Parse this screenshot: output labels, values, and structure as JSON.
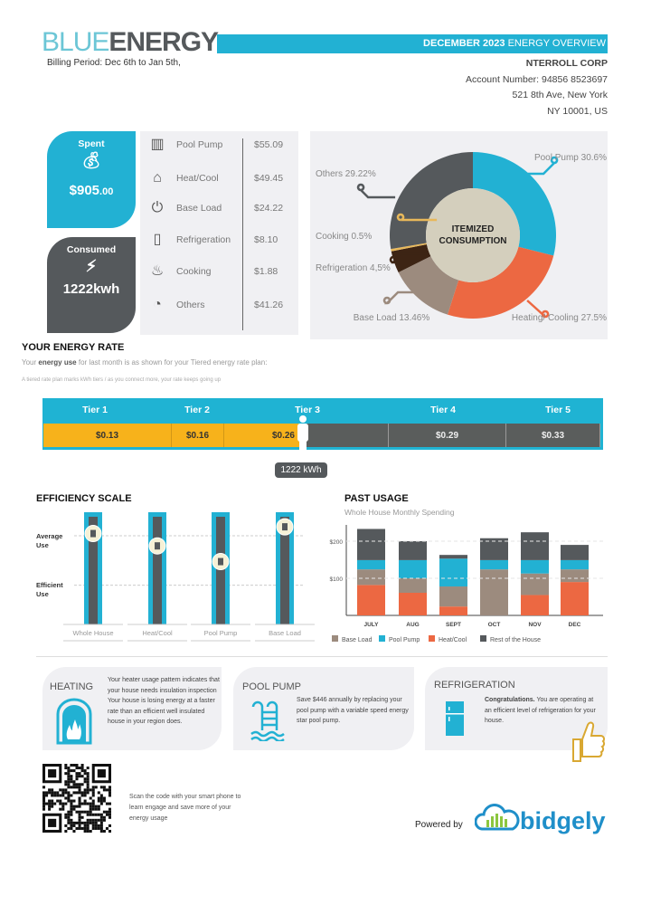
{
  "header": {
    "logo_blue": "BLUE",
    "logo_energy": "ENERGY",
    "banner_bold": "DECEMBER 2023",
    "banner_rest": " ENERGY OVERVIEW",
    "billing_period": "Billing  Period:  Dec 6th to Jan 5th,"
  },
  "account": {
    "company": "NTERROLL  CORP",
    "number": "Account  Number:  94856 8523697",
    "address1": "521  8th Ave, New York",
    "address2": "NY 10001,  US"
  },
  "summary": {
    "spent_label": "Spent",
    "spent_value": "$905",
    "spent_cents": ".00",
    "consumed_label": "Consumed",
    "consumed_value": "1222kwh"
  },
  "breakdown": [
    {
      "icon": "pool-ladder-icon",
      "glyph": "▥",
      "name": "Pool  Pump",
      "amount": "$55.09"
    },
    {
      "icon": "heat-cool-icon",
      "glyph": "⌂",
      "name": "Heat/Cool",
      "amount": "$49.45"
    },
    {
      "icon": "power-icon",
      "glyph": "⏻",
      "name": "Base  Load",
      "amount": "$24.22"
    },
    {
      "icon": "refrigerator-icon",
      "glyph": "▯",
      "name": "Refrigeration",
      "amount": "$8.10"
    },
    {
      "icon": "cooking-pot-icon",
      "glyph": "♨",
      "name": "Cooking",
      "amount": "$1.88"
    },
    {
      "icon": "plug-icon",
      "glyph": "◔",
      "name": "Others",
      "amount": "$41.26"
    }
  ],
  "rate": {
    "title": "YOUR  ENERGY  RATE",
    "desc_pre": "Your ",
    "desc_bold": "energy use",
    "desc_post": " for last month is as shown for your Tiered energy rate plan:",
    "small": "A tiered  rate plan marks kWh  tiers / as you connect  more, your rate  keeps going  up",
    "tiers": [
      {
        "label": "Tier 1",
        "price": "$0.13"
      },
      {
        "label": "Tier 2",
        "price": "$0.16"
      },
      {
        "label": "Tier 3",
        "price": "$0.26"
      },
      {
        "label": "Tier 4",
        "price": "$0.29"
      },
      {
        "label": "Tier 5",
        "price": "$0.33"
      }
    ],
    "usage_badge": "1222 kWh",
    "current_tier": 3
  },
  "efficiency": {
    "title": "EFFICIENCY  SCALE",
    "average_label": "Average Use",
    "efficient_label": "Efficient Use",
    "average_level_pct": 79,
    "efficient_level_pct": 35,
    "items": [
      {
        "label": "Whole  House",
        "icon": "house-icon",
        "level_pct": 81
      },
      {
        "label": "Heat/Cool",
        "icon": "heat-cool-icon",
        "level_pct": 70
      },
      {
        "label": "Pool Pump",
        "icon": "pool-ladder-icon",
        "level_pct": 56
      },
      {
        "label": "Base Load",
        "icon": "power-icon",
        "level_pct": 87
      }
    ]
  },
  "past": {
    "title": "PAST USAGE",
    "subtitle": "Whole House Monthly Spending"
  },
  "chart_data": [
    {
      "type": "pie",
      "title": "ITEMIZED CONSUMPTION",
      "donut": true,
      "slices": [
        {
          "label": "Pool Pump 30.6%",
          "value": 30.6,
          "color": "#22b1d3"
        },
        {
          "label": "Heating/ Cooling 27.5%",
          "value": 27.5,
          "color": "#ec6842"
        },
        {
          "label": "Base Load 13.46%",
          "value": 13.46,
          "color": "#9c8b7e"
        },
        {
          "label": "Refrigeration 4,5%",
          "value": 4.5,
          "color": "#3d2414"
        },
        {
          "label": "Cooking 0.5%",
          "value": 0.5,
          "color": "#e8b85a"
        },
        {
          "label": "Others 29.22%",
          "value": 29.22,
          "color": "#55595c"
        }
      ]
    },
    {
      "type": "bar",
      "stacked": true,
      "categories": [
        "JULY",
        "AUG",
        "SEPT",
        "OCT",
        "NOV",
        "DEC"
      ],
      "yticks": [
        "$100",
        "$200"
      ],
      "ytick_values": [
        100,
        200
      ],
      "ylim": [
        0,
        240
      ],
      "series": [
        {
          "name": "Heat/Cool",
          "color": "#ec6842",
          "values": [
            82,
            61,
            24,
            0,
            55,
            90
          ]
        },
        {
          "name": "Base Load",
          "color": "#9c8b7e",
          "values": [
            42,
            39,
            54,
            124,
            58,
            34
          ]
        },
        {
          "name": "Pool Pump",
          "color": "#22b1d3",
          "values": [
            25,
            49,
            75,
            25,
            36,
            25
          ]
        },
        {
          "name": "Rest of the House",
          "color": "#55595c",
          "values": [
            84,
            51,
            10,
            59,
            75,
            41
          ]
        }
      ],
      "legend_order": [
        "Base Load",
        "Pool  Pump",
        "Heat/Cool",
        "Rest of the House"
      ],
      "legend": "bottom"
    }
  ],
  "tips": [
    {
      "title": "HEATING",
      "icon": "fireplace-icon",
      "text": "Your heater usage pattern indicates that your house needs insulation  inspection  Your house is losing  energy at a faster rate than an efficient well  insulated house in your region does."
    },
    {
      "title": "POOL PUMP",
      "icon": "pool-ladder-icon",
      "text": "Save $446 annually by replacing your pool pump with a variable speed energy star pool pump."
    },
    {
      "title": "REFRIGERATION",
      "icon": "refrigerator-icon",
      "text_bold": "Congratulations.",
      "text": "  You are operating at an efficient level of refrigeration for your house."
    }
  ],
  "footer": {
    "scan_text": "Scan the code with your smart phone to learn engage and save more of your energy usage",
    "powered_by": "Powered by",
    "brand": "bidgely"
  },
  "colors": {
    "accent": "#22b1d3",
    "dark": "#55595c",
    "tier_fill": "#f7b21b",
    "heat": "#ec6842",
    "base": "#9c8b7e"
  }
}
